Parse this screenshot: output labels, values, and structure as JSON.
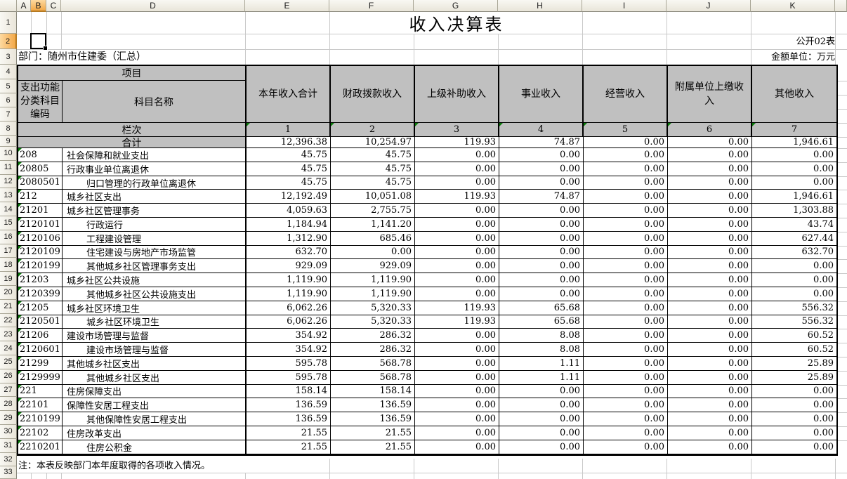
{
  "window": {
    "col_headers": [
      "A",
      "B",
      "C",
      "D",
      "E",
      "F",
      "G",
      "H",
      "I",
      "J",
      "K"
    ],
    "selected_col": "B",
    "selected_row": "2",
    "selected_cell": "B2",
    "row_numbers": [
      "1",
      "2",
      "3",
      "4",
      "5",
      "6",
      "7",
      "8",
      "9",
      "10",
      "11",
      "12",
      "13",
      "14",
      "15",
      "16",
      "17",
      "18",
      "19",
      "20",
      "21",
      "22",
      "23",
      "24",
      "25",
      "26",
      "27",
      "28",
      "29",
      "30",
      "31",
      "32",
      "33"
    ]
  },
  "title": "收入决算表",
  "meta": {
    "sheet_code": "公开02表",
    "department": "部门：随州市住建委（汇总）",
    "unit": "金额单位：万元",
    "note": "注：本表反映部门本年度取得的各项收入情况。"
  },
  "colors": {
    "header_fill": "#c0c0c0",
    "selection_orange": "#f3a847",
    "triangle_green": "#0a7a0a",
    "grid_line": "#c9c9c9",
    "table_border": "#000000"
  },
  "table": {
    "header": {
      "project": "项目",
      "code_label": "支出功能分类科目编码",
      "name_label": "科目名称",
      "lanci_label": "栏次",
      "columns": [
        "本年收入合计",
        "财政拨款收入",
        "上级补助收入",
        "事业收入",
        "经营收入",
        "附属单位上缴收入",
        "其他收入"
      ],
      "col_numbers": [
        "1",
        "2",
        "3",
        "4",
        "5",
        "6",
        "7"
      ]
    },
    "total_row": {
      "label": "合计",
      "values": [
        "12,396.38",
        "10,254.97",
        "119.93",
        "74.87",
        "0.00",
        "0.00",
        "1,946.61"
      ]
    },
    "rows": [
      {
        "code": "208",
        "name": "社会保障和就业支出",
        "indent": false,
        "values": [
          "45.75",
          "45.75",
          "0.00",
          "0.00",
          "0.00",
          "0.00",
          "0.00"
        ]
      },
      {
        "code": "20805",
        "name": "行政事业单位离退休",
        "indent": false,
        "values": [
          "45.75",
          "45.75",
          "0.00",
          "0.00",
          "0.00",
          "0.00",
          "0.00"
        ]
      },
      {
        "code": "2080501",
        "name": "归口管理的行政单位离退休",
        "indent": true,
        "values": [
          "45.75",
          "45.75",
          "0.00",
          "0.00",
          "0.00",
          "0.00",
          "0.00"
        ]
      },
      {
        "code": "212",
        "name": "城乡社区支出",
        "indent": false,
        "values": [
          "12,192.49",
          "10,051.08",
          "119.93",
          "74.87",
          "0.00",
          "0.00",
          "1,946.61"
        ]
      },
      {
        "code": "21201",
        "name": "城乡社区管理事务",
        "indent": false,
        "values": [
          "4,059.63",
          "2,755.75",
          "0.00",
          "0.00",
          "0.00",
          "0.00",
          "1,303.88"
        ]
      },
      {
        "code": "2120101",
        "name": "行政运行",
        "indent": true,
        "values": [
          "1,184.94",
          "1,141.20",
          "0.00",
          "0.00",
          "0.00",
          "0.00",
          "43.74"
        ]
      },
      {
        "code": "2120106",
        "name": "工程建设管理",
        "indent": true,
        "values": [
          "1,312.90",
          "685.46",
          "0.00",
          "0.00",
          "0.00",
          "0.00",
          "627.44"
        ]
      },
      {
        "code": "2120109",
        "name": "住宅建设与房地产市场监管",
        "indent": true,
        "values": [
          "632.70",
          "0.00",
          "0.00",
          "0.00",
          "0.00",
          "0.00",
          "632.70"
        ]
      },
      {
        "code": "2120199",
        "name": "其他城乡社区管理事务支出",
        "indent": true,
        "values": [
          "929.09",
          "929.09",
          "0.00",
          "0.00",
          "0.00",
          "0.00",
          "0.00"
        ]
      },
      {
        "code": "21203",
        "name": "城乡社区公共设施",
        "indent": false,
        "values": [
          "1,119.90",
          "1,119.90",
          "0.00",
          "0.00",
          "0.00",
          "0.00",
          "0.00"
        ]
      },
      {
        "code": "2120399",
        "name": "其他城乡社区公共设施支出",
        "indent": true,
        "values": [
          "1,119.90",
          "1,119.90",
          "0.00",
          "0.00",
          "0.00",
          "0.00",
          "0.00"
        ]
      },
      {
        "code": "21205",
        "name": "城乡社区环境卫生",
        "indent": false,
        "values": [
          "6,062.26",
          "5,320.33",
          "119.93",
          "65.68",
          "0.00",
          "0.00",
          "556.32"
        ]
      },
      {
        "code": "2120501",
        "name": "城乡社区环境卫生",
        "indent": true,
        "values": [
          "6,062.26",
          "5,320.33",
          "119.93",
          "65.68",
          "0.00",
          "0.00",
          "556.32"
        ]
      },
      {
        "code": "21206",
        "name": "建设市场管理与监督",
        "indent": false,
        "values": [
          "354.92",
          "286.32",
          "0.00",
          "8.08",
          "0.00",
          "0.00",
          "60.52"
        ]
      },
      {
        "code": "2120601",
        "name": "建设市场管理与监督",
        "indent": true,
        "values": [
          "354.92",
          "286.32",
          "0.00",
          "8.08",
          "0.00",
          "0.00",
          "60.52"
        ]
      },
      {
        "code": "21299",
        "name": "其他城乡社区支出",
        "indent": false,
        "values": [
          "595.78",
          "568.78",
          "0.00",
          "1.11",
          "0.00",
          "0.00",
          "25.89"
        ]
      },
      {
        "code": "2129999",
        "name": "其他城乡社区支出",
        "indent": true,
        "values": [
          "595.78",
          "568.78",
          "0.00",
          "1.11",
          "0.00",
          "0.00",
          "25.89"
        ]
      },
      {
        "code": "221",
        "name": "住房保障支出",
        "indent": false,
        "values": [
          "158.14",
          "158.14",
          "0.00",
          "0.00",
          "0.00",
          "0.00",
          "0.00"
        ]
      },
      {
        "code": "22101",
        "name": "保障性安居工程支出",
        "indent": false,
        "values": [
          "136.59",
          "136.59",
          "0.00",
          "0.00",
          "0.00",
          "0.00",
          "0.00"
        ]
      },
      {
        "code": "2210199",
        "name": "其他保障性安居工程支出",
        "indent": true,
        "values": [
          "136.59",
          "136.59",
          "0.00",
          "0.00",
          "0.00",
          "0.00",
          "0.00"
        ]
      },
      {
        "code": "22102",
        "name": "住房改革支出",
        "indent": false,
        "values": [
          "21.55",
          "21.55",
          "0.00",
          "0.00",
          "0.00",
          "0.00",
          "0.00"
        ]
      },
      {
        "code": "2210201",
        "name": "住房公积金",
        "indent": true,
        "values": [
          "21.55",
          "21.55",
          "0.00",
          "0.00",
          "0.00",
          "0.00",
          "0.00"
        ]
      }
    ]
  }
}
